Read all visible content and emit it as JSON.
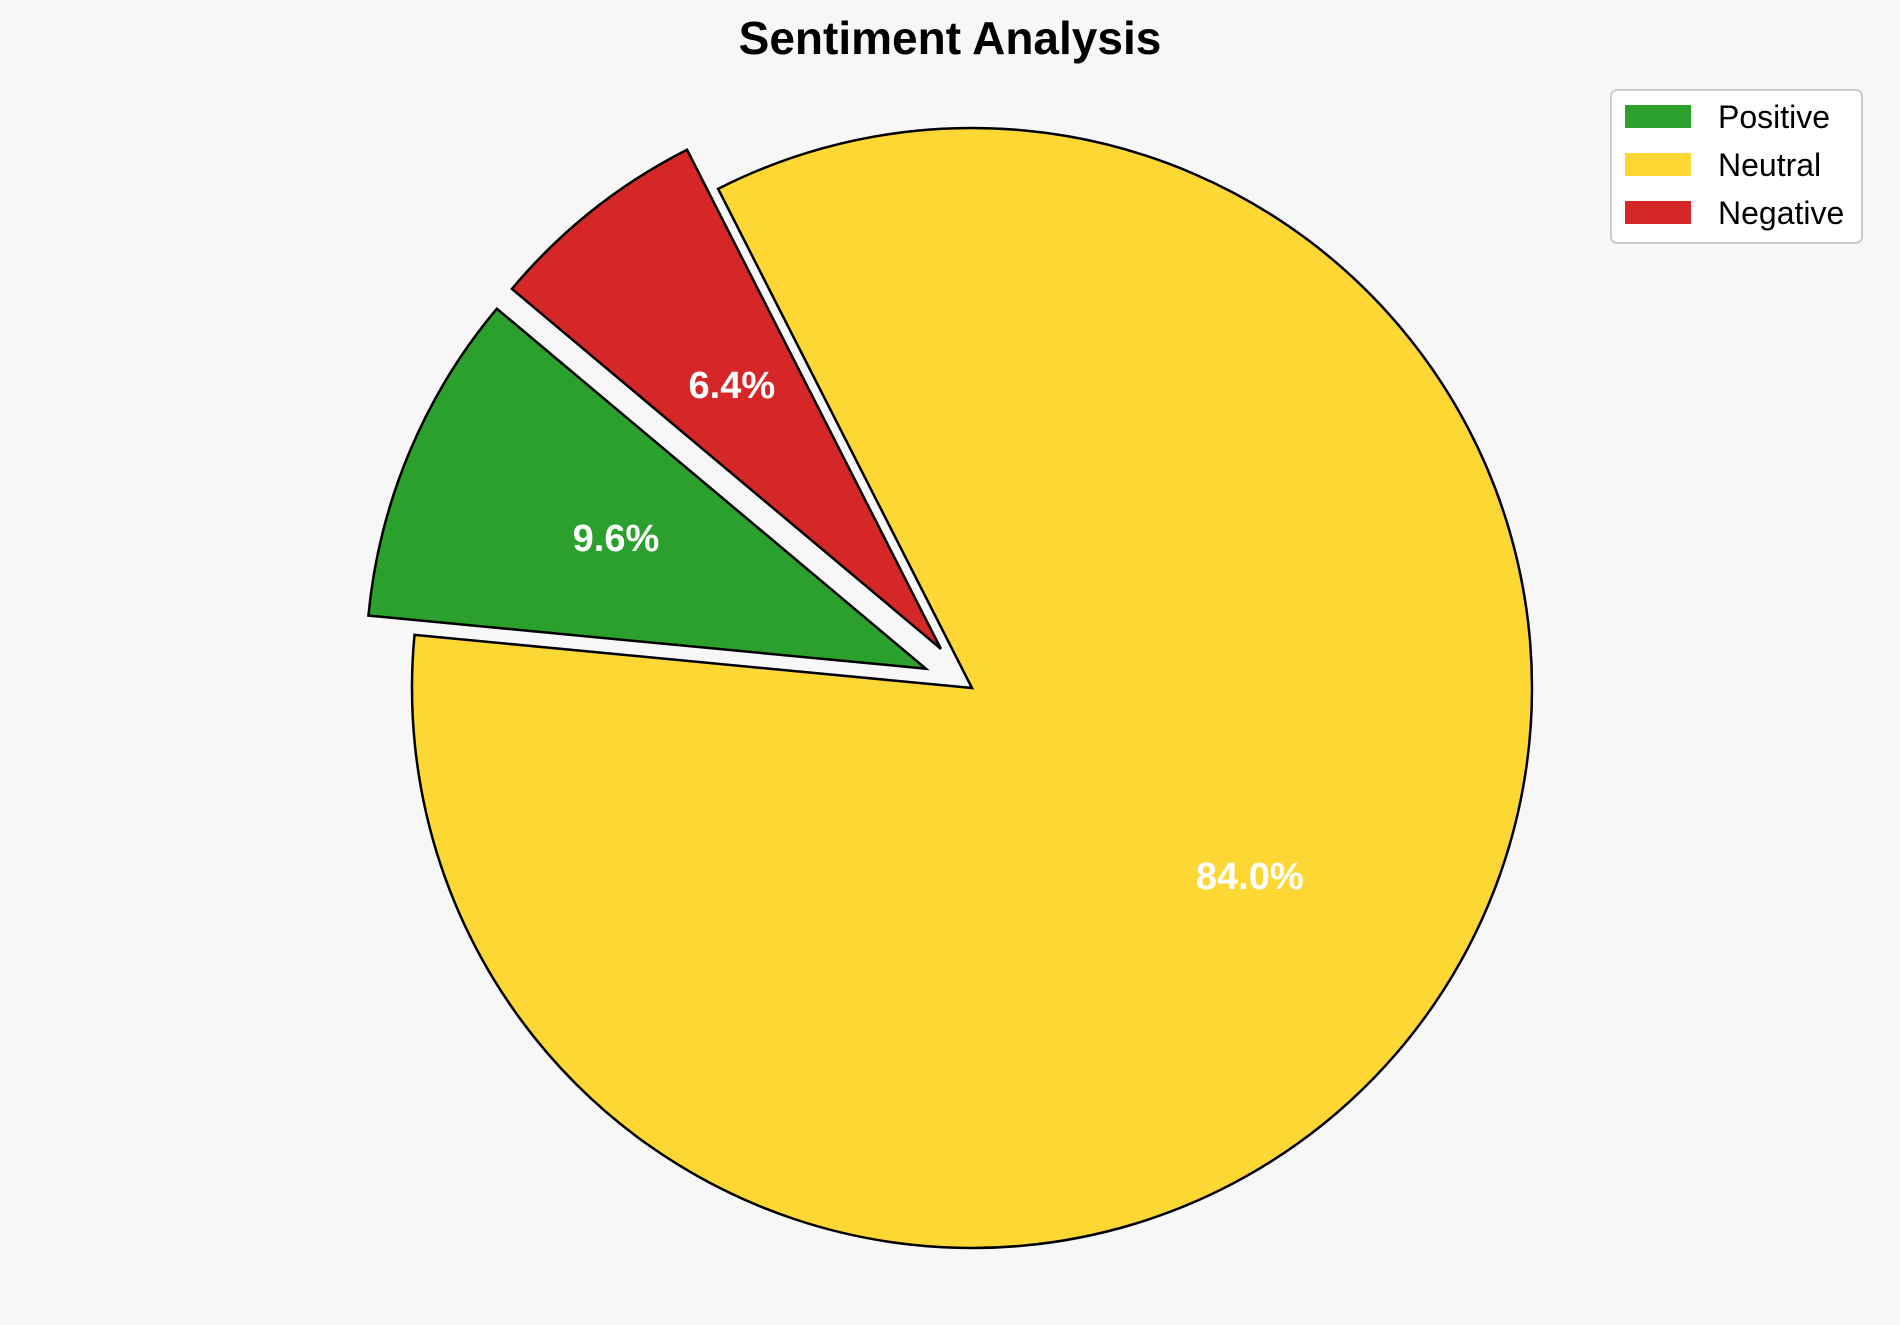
{
  "chart_data": {
    "type": "pie",
    "title": "Sentiment Analysis",
    "categories": [
      "Positive",
      "Neutral",
      "Negative"
    ],
    "values": [
      9.6,
      84.0,
      6.4
    ],
    "value_labels": [
      "9.6%",
      "84.0%",
      "6.4%"
    ],
    "unit": "%",
    "colors": [
      "#2ca02c",
      "#fdd835",
      "#d62728"
    ],
    "exploded": [
      "Positive",
      "Negative"
    ],
    "legend_position": "top-right"
  }
}
